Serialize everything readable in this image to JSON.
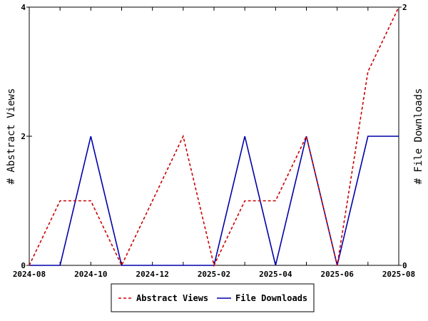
{
  "chart_data": {
    "type": "line",
    "x_ticks": [
      "2024-08",
      "2024-10",
      "2024-12",
      "2025-02",
      "2025-04",
      "2025-06",
      "2025-08"
    ],
    "x": [
      "2024-08",
      "2024-09",
      "2024-10",
      "2024-11",
      "2024-12",
      "2025-01",
      "2025-02",
      "2025-03",
      "2025-04",
      "2025-05",
      "2025-06",
      "2025-07",
      "2025-08"
    ],
    "series": [
      {
        "name": "Abstract Views",
        "axis": "left",
        "color": "#cc0000",
        "dash": "dashed",
        "values": [
          0,
          1,
          1,
          0,
          1,
          2,
          0,
          1,
          1,
          2,
          0,
          3,
          4
        ]
      },
      {
        "name": "File Downloads",
        "axis": "right",
        "color": "#0000aa",
        "dash": "solid",
        "values": [
          0,
          0,
          1,
          0,
          0,
          0,
          0,
          1,
          0,
          1,
          0,
          1,
          1
        ]
      }
    ],
    "y_left": {
      "label": "# Abstract Views",
      "ylim": [
        0,
        4
      ],
      "ticks": [
        "0",
        "2",
        "4"
      ]
    },
    "y_right": {
      "label": "# File Downloads",
      "ylim": [
        0,
        2
      ],
      "ticks": [
        "0",
        "2"
      ]
    },
    "legend": {
      "placement": "bottom-center"
    },
    "grid": false
  }
}
